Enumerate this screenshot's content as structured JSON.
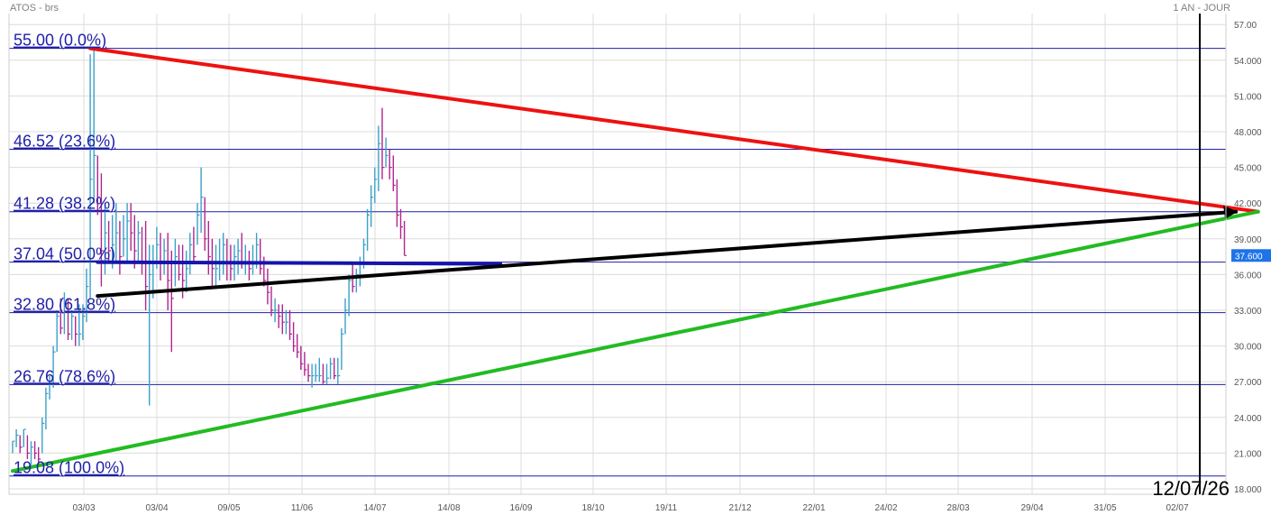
{
  "header": {
    "instrument": "ATOS - brs",
    "period": "1 AN - JOUR"
  },
  "colors": {
    "fib_line": "#1f1fa8",
    "resistance": "#ee1111",
    "support": "#22bb22",
    "projection": "#000000",
    "level_50": "#1515aa",
    "bar_up": "#3aa0c8",
    "bar_down": "#b0258f",
    "price_badge": "#1e73e8",
    "grid": "#dcdcdc"
  },
  "chart_data": {
    "type": "ohlc-bars",
    "y_axis": {
      "ylim": [
        17.5,
        57.5
      ],
      "ticks": [
        "18.000",
        "21.000",
        "24.000",
        "27.000",
        "30.000",
        "33.000",
        "36.000",
        "39.000",
        "42.000",
        "45.000",
        "48.000",
        "51.000",
        "54.000",
        "57.00"
      ],
      "tick_values": [
        18,
        21,
        24,
        27,
        30,
        33,
        36,
        39,
        42,
        45,
        48,
        51,
        54,
        57
      ]
    },
    "x_axis": {
      "ticks": [
        "03/03",
        "03/04",
        "09/05",
        "11/06",
        "14/07",
        "14/08",
        "16/09",
        "18/10",
        "19/11",
        "21/12",
        "22/01",
        "24/02",
        "28/03",
        "29/04",
        "31/05",
        "02/07"
      ]
    },
    "last_price": "37.600",
    "fibonacci": [
      {
        "price": 55.0,
        "label": "55.00  (0.0%)"
      },
      {
        "price": 46.52,
        "label": "46.52  (23.6%)"
      },
      {
        "price": 41.28,
        "label": "41.28  (38.2%)"
      },
      {
        "price": 37.04,
        "label": "37.04  (50.0%)"
      },
      {
        "price": 32.8,
        "label": "32.80  (61.8%)"
      },
      {
        "price": 26.76,
        "label": "26.76  (78.6%)"
      },
      {
        "price": 19.08,
        "label": "19.08  (100.0%)"
      }
    ],
    "date_marker": "12/07/26",
    "price_series": {
      "name": "",
      "bars": [
        [
          22.0,
          21.0,
          22.0
        ],
        [
          23.0,
          21.5,
          22.5
        ],
        [
          22.5,
          21.0,
          21.5
        ],
        [
          23.0,
          21.5,
          23.0
        ],
        [
          22.5,
          20.5,
          21.0
        ],
        [
          22.0,
          20.0,
          21.5
        ],
        [
          22.0,
          20.5,
          21.0
        ],
        [
          21.5,
          20.0,
          20.5
        ],
        [
          24.0,
          21.0,
          23.5
        ],
        [
          26.5,
          23.0,
          26.0
        ],
        [
          27.5,
          25.5,
          27.0
        ],
        [
          30.0,
          26.5,
          29.5
        ],
        [
          33.0,
          29.5,
          32.5
        ],
        [
          34.0,
          31.0,
          31.5
        ],
        [
          34.5,
          31.0,
          33.5
        ],
        [
          34.0,
          30.5,
          31.0
        ],
        [
          33.0,
          30.5,
          32.5
        ],
        [
          32.5,
          30.0,
          31.0
        ],
        [
          33.5,
          30.0,
          31.0
        ],
        [
          33.5,
          30.5,
          32.5
        ],
        [
          36.5,
          32.0,
          35.0
        ],
        [
          54.5,
          34.0,
          44.0
        ],
        [
          55.0,
          42.0,
          46.0
        ],
        [
          46.0,
          41.0,
          42.5
        ],
        [
          44.5,
          35.0,
          38.0
        ],
        [
          42.0,
          36.0,
          39.5
        ],
        [
          40.5,
          37.0,
          38.0
        ],
        [
          41.0,
          36.5,
          38.5
        ],
        [
          42.0,
          37.0,
          39.5
        ],
        [
          40.5,
          36.0,
          37.5
        ],
        [
          41.0,
          37.5,
          39.0
        ],
        [
          42.0,
          37.0,
          40.5
        ],
        [
          42.0,
          38.0,
          39.5
        ],
        [
          41.0,
          36.5,
          38.0
        ],
        [
          40.5,
          37.0,
          39.5
        ],
        [
          40.0,
          36.0,
          37.0
        ],
        [
          40.5,
          33.0,
          35.0
        ],
        [
          38.5,
          25.0,
          36.0
        ],
        [
          38.5,
          34.0,
          37.0
        ],
        [
          40.0,
          36.5,
          38.5
        ],
        [
          39.5,
          35.5,
          37.0
        ],
        [
          39.0,
          36.0,
          38.0
        ],
        [
          39.5,
          33.0,
          35.5
        ],
        [
          38.0,
          29.5,
          34.0
        ],
        [
          39.0,
          35.0,
          37.5
        ],
        [
          38.5,
          35.5,
          36.0
        ],
        [
          38.5,
          34.0,
          35.5
        ],
        [
          38.0,
          34.5,
          36.5
        ],
        [
          39.5,
          36.0,
          38.5
        ],
        [
          40.0,
          37.0,
          37.5
        ],
        [
          42.0,
          38.5,
          41.0
        ],
        [
          45.0,
          39.5,
          42.5
        ],
        [
          42.5,
          38.0,
          39.0
        ],
        [
          40.5,
          36.0,
          37.5
        ],
        [
          39.0,
          35.0,
          36.5
        ],
        [
          38.5,
          35.0,
          36.5
        ],
        [
          39.0,
          35.5,
          37.0
        ],
        [
          39.5,
          36.0,
          38.5
        ],
        [
          39.0,
          35.5,
          37.0
        ],
        [
          38.5,
          35.5,
          36.5
        ],
        [
          38.5,
          35.5,
          37.5
        ],
        [
          39.0,
          36.0,
          38.0
        ],
        [
          39.5,
          36.5,
          37.0
        ],
        [
          38.5,
          36.0,
          37.0
        ],
        [
          38.0,
          35.5,
          36.5
        ],
        [
          38.5,
          36.0,
          37.0
        ],
        [
          39.5,
          36.5,
          38.5
        ],
        [
          39.0,
          36.0,
          36.5
        ],
        [
          37.5,
          35.0,
          35.5
        ],
        [
          36.5,
          33.5,
          34.5
        ],
        [
          35.0,
          32.5,
          33.0
        ],
        [
          34.0,
          32.0,
          33.0
        ],
        [
          33.5,
          31.5,
          32.5
        ],
        [
          33.5,
          31.0,
          32.0
        ],
        [
          33.0,
          31.0,
          32.0
        ],
        [
          33.0,
          30.5,
          31.0
        ],
        [
          32.0,
          29.5,
          30.0
        ],
        [
          31.0,
          29.0,
          29.5
        ],
        [
          30.0,
          28.0,
          28.5
        ],
        [
          29.5,
          27.5,
          28.0
        ],
        [
          28.5,
          27.0,
          27.5
        ],
        [
          28.5,
          26.5,
          27.5
        ],
        [
          28.5,
          27.0,
          27.5
        ],
        [
          29.0,
          27.0,
          27.5
        ],
        [
          28.5,
          26.8,
          27.0
        ],
        [
          28.5,
          26.8,
          27.3
        ],
        [
          29.0,
          27.2,
          28.5
        ],
        [
          29.0,
          27.2,
          27.5
        ],
        [
          29.0,
          26.8,
          27.5
        ],
        [
          31.5,
          28.0,
          31.0
        ],
        [
          34.0,
          31.0,
          33.0
        ],
        [
          36.0,
          32.5,
          35.5
        ],
        [
          37.0,
          34.5,
          35.0
        ],
        [
          36.5,
          34.5,
          36.0
        ],
        [
          37.5,
          35.0,
          37.0
        ],
        [
          39.0,
          36.5,
          38.5
        ],
        [
          41.5,
          38.0,
          41.0
        ],
        [
          43.5,
          40.0,
          42.5
        ],
        [
          45.0,
          42.0,
          44.0
        ],
        [
          48.5,
          43.0,
          47.0
        ],
        [
          50.0,
          44.0,
          45.0
        ],
        [
          47.5,
          45.0,
          46.0
        ],
        [
          46.5,
          44.0,
          45.0
        ],
        [
          46.0,
          43.0,
          43.5
        ],
        [
          44.0,
          40.0,
          41.0
        ],
        [
          41.5,
          39.0,
          40.0
        ],
        [
          40.5,
          37.6,
          37.6
        ]
      ]
    },
    "trendlines": [
      {
        "role": "resistance",
        "from": [
          21,
          55.0
        ],
        "to": [
          337,
          41.28
        ]
      },
      {
        "role": "support",
        "from": [
          0,
          19.5
        ],
        "to": [
          337,
          41.28
        ]
      },
      {
        "role": "projection",
        "from": [
          23,
          34.2
        ],
        "to": [
          331,
          41.28
        ]
      },
      {
        "role": "level_50",
        "from": [
          23,
          37.04
        ],
        "to": [
          132,
          36.9
        ]
      }
    ]
  }
}
